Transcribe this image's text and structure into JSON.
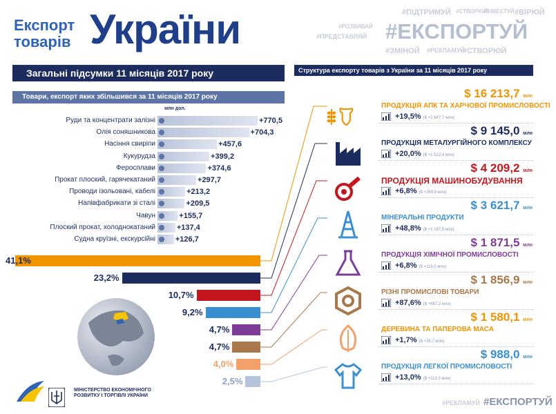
{
  "header": {
    "line1": "Експорт",
    "line2": "товарів",
    "big": "України"
  },
  "hashtags": {
    "big": "#ЕКСПОРТУЙ",
    "small": [
      "#ПІДТРИМУЙ",
      "#СТВОРЮЙ",
      "#ІНВЕСТУЙ",
      "#РЕКЛАМУЙ",
      "#РОЗВИВАЙ",
      "#ПРЕДСТАВЛЯЙ",
      "#ЗМІНОЙ",
      "#РЕКЛАМУЙ",
      "#СТВОРЮЙ",
      "#ВІРЮЙ"
    ],
    "footer_small": "#РЕКЛАМУЙ",
    "footer_big": "#ЕКСПОРТУЙ"
  },
  "titles": {
    "summary": "Загальні підсумки 11 місяців 2017 року",
    "structure": "Структура експорту товарів з України за 11 місяців 2017 року",
    "increased": "Товари, експорт яких збільшився за 11 місяців 2017 року",
    "unit": "млн дол."
  },
  "ministry": "МІНІСТЕРСТВО ЕКОНОМІЧНОГО РОЗВИТКУ І ТОРГІВЛІ УКРАЇНИ",
  "chart_data": [
    {
      "type": "bar",
      "orientation": "horizontal",
      "title": "Товари, експорт яких збільшився за 11 місяців 2017 року",
      "unit": "млн дол.",
      "categories": [
        "Руди та концентрати залізні",
        "Олія соняшникова",
        "Насіння свиріпи",
        "Кукурудза",
        "Феросплави",
        "Прокат плоский, гарячекатаний",
        "Проводи ізольовані, кабелі",
        "Напівфабрикати зі сталі",
        "Чавун",
        "Плоский прокат, холоднокатаний",
        "Судна круїзні, екскурсійні"
      ],
      "values": [
        770.5,
        704.3,
        457.6,
        399.2,
        374.6,
        297.7,
        213.2,
        209.5,
        155.7,
        137.4,
        126.7
      ],
      "value_labels": [
        "+770,5",
        "+704,3",
        "+457,6",
        "+399,2",
        "+374,6",
        "+297,7",
        "+213,2",
        "+209,5",
        "+155,7",
        "+137,4",
        "+126,7"
      ]
    },
    {
      "type": "bar",
      "orientation": "horizontal",
      "title": "Структура експорту товарів з України за 11 місяців 2017 року",
      "categories": [
        "ПРОДУКЦІЯ АПК ТА ХАРЧОВОЇ ПРОМИСЛОВОСТІ",
        "ПРОДУКЦІЯ МЕТАЛУРГІЙНОГО КОМПЛЕКСУ",
        "ПРОДУКЦІЯ МАШИНОБУДУВАННЯ",
        "МІНЕРАЛЬНІ ПРОДУКТИ",
        "ПРОДУКЦІЯ ХІМІЧНОЇ ПРОМИСЛОВОСТІ",
        "РІЗНІ ПРОМИСЛОВІ ТОВАРИ",
        "ДЕРЕВИНА ТА ПАПЕРОВА МАСА",
        "ПРОДУКЦІЯ ЛЕГКОЇ ПРОМИСЛОВОСТІ"
      ],
      "shares": [
        41.1,
        23.2,
        10.7,
        9.2,
        4.7,
        4.7,
        4.0,
        2.5
      ],
      "share_labels": [
        "41,1%",
        "23,2%",
        "10,7%",
        "9,2%",
        "4,7%",
        "4,7%",
        "4,0%",
        "2,5%"
      ],
      "values_musd": [
        16213.7,
        9145.0,
        4209.2,
        3621.7,
        1871.5,
        1856.9,
        1580.1,
        988.0
      ],
      "value_labels": [
        "$ 16 213,7",
        "$ 9 145,0",
        "$ 4 209,2",
        "$ 3 621,7",
        "$ 1 871,5",
        "$ 1 856,9",
        "$ 1 580,1",
        "$ 988,0"
      ],
      "value_unit": "млн",
      "growth_labels": [
        "+19,5%",
        "+20,0%",
        "+6,8%",
        "+48,8%",
        "+6,8%",
        "+87,6%",
        "+1,7%",
        "+13,0%"
      ],
      "growth_abs_labels": [
        "($ +2 647,7 млн)",
        "($ +1 522,4 млн)",
        "($ +269,6 млн)",
        "($ +1 187,5 млн)",
        "($ +119,0 млн)",
        "($ +867,2 млн)",
        "($ +26,7 млн)",
        "($ +113,3 млн)"
      ],
      "colors": [
        "#f29400",
        "#1c2c5e",
        "#c4161c",
        "#3a8fd1",
        "#7d3c98",
        "#a8784a",
        "#f4a06a",
        "#b5c3dd"
      ],
      "value_colors": [
        "#f29400",
        "#1c2c5e",
        "#c4161c",
        "#3a8fd1",
        "#7d3c98",
        "#a8784a",
        "#f29400",
        "#3a8fd1"
      ]
    }
  ]
}
